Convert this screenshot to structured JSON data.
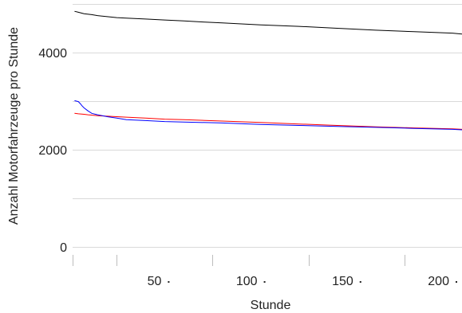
{
  "chart_data": {
    "type": "line",
    "title": "",
    "xlabel": "Stunde",
    "ylabel": "Anzahl Motorfahrzeuge pro Stunde",
    "x_ticks": [
      "50",
      "100",
      "150",
      "200"
    ],
    "y_ticks": [
      "0",
      "2000",
      "4000"
    ],
    "xlim": [
      2,
      205
    ],
    "ylim": [
      0,
      5000
    ],
    "grid": true,
    "legend": "none",
    "series": [
      {
        "color": "#000000",
        "x": [
          3,
          5,
          8,
          12,
          15,
          20,
          25,
          30,
          40,
          50,
          60,
          70,
          80,
          90,
          100,
          120,
          140,
          160,
          180,
          200,
          205
        ],
        "y": [
          4850,
          4830,
          4800,
          4780,
          4760,
          4740,
          4720,
          4710,
          4690,
          4670,
          4650,
          4630,
          4610,
          4590,
          4570,
          4540,
          4500,
          4460,
          4430,
          4400,
          4380
        ]
      },
      {
        "color": "#ff0000",
        "x": [
          3,
          5,
          8,
          10,
          15,
          20,
          30,
          40,
          50,
          60,
          80,
          100,
          120,
          140,
          160,
          180,
          200,
          205
        ],
        "y": [
          2750,
          2740,
          2730,
          2720,
          2700,
          2690,
          2670,
          2650,
          2630,
          2620,
          2590,
          2560,
          2530,
          2500,
          2470,
          2450,
          2430,
          2420
        ]
      },
      {
        "color": "#0000ff",
        "x": [
          3,
          5,
          6,
          7,
          8,
          10,
          12,
          15,
          20,
          25,
          30,
          40,
          50,
          60,
          80,
          100,
          120,
          140,
          160,
          180,
          200,
          205
        ],
        "y": [
          3010,
          2990,
          2950,
          2900,
          2860,
          2800,
          2750,
          2720,
          2680,
          2650,
          2620,
          2600,
          2580,
          2570,
          2550,
          2520,
          2500,
          2480,
          2460,
          2440,
          2420,
          2410
        ]
      }
    ]
  }
}
